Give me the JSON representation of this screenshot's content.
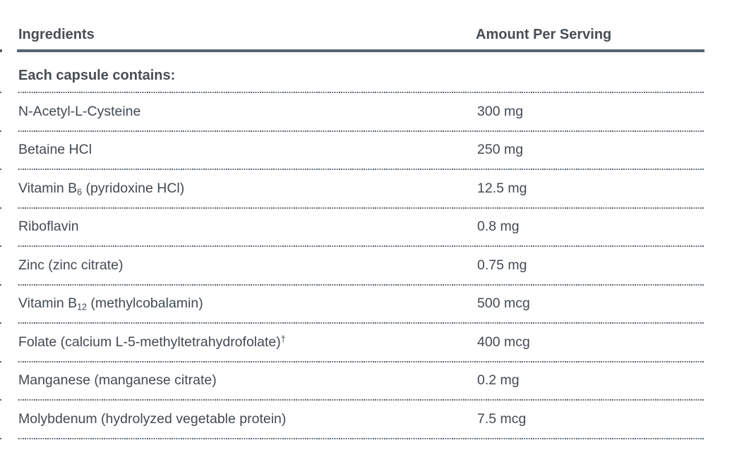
{
  "table": {
    "header": {
      "ingredients": "Ingredients",
      "amount": "Amount Per Serving"
    },
    "section_title": "Each capsule contains:",
    "rows": [
      {
        "name": {
          "pre": "N-Acetyl-L-Cysteine"
        },
        "amount": "300 mg"
      },
      {
        "name": {
          "pre": "Betaine HCl"
        },
        "amount": "250 mg"
      },
      {
        "name": {
          "pre": "Vitamin B",
          "sub": "6",
          "post": " (pyridoxine HCl)"
        },
        "amount": "12.5 mg"
      },
      {
        "name": {
          "pre": "Riboflavin"
        },
        "amount": "0.8 mg"
      },
      {
        "name": {
          "pre": "Zinc (zinc citrate)"
        },
        "amount": "0.75 mg"
      },
      {
        "name": {
          "pre": "Vitamin B",
          "sub": "12",
          "post": " (methylcobalamin)"
        },
        "amount": "500 mcg"
      },
      {
        "name": {
          "pre": "Folate (calcium L-5-methyltetrahydrofolate)",
          "sup": "†"
        },
        "amount": "400 mcg"
      },
      {
        "name": {
          "pre": "Manganese (manganese citrate)"
        },
        "amount": "0.2 mg"
      },
      {
        "name": {
          "pre": "Molybdenum (hydrolyzed vegetable protein)"
        },
        "amount": "7.5 mcg"
      }
    ],
    "colors": {
      "text": "#424a52",
      "header_text": "#474e54",
      "thick_rule": "#57646f",
      "dotted_rule": "#5d6872",
      "background": "#ffffff"
    }
  }
}
